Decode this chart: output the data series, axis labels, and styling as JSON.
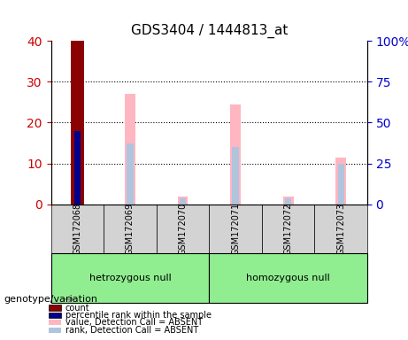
{
  "title": "GDS3404 / 1444813_at",
  "samples": [
    "GSM172068",
    "GSM172069",
    "GSM172070",
    "GSM172071",
    "GSM172072",
    "GSM172073"
  ],
  "groups": [
    {
      "label": "hetrozygous null",
      "samples": [
        "GSM172068",
        "GSM172069",
        "GSM172070"
      ],
      "color": "#90EE90"
    },
    {
      "label": "homozygous null",
      "samples": [
        "GSM172071",
        "GSM172072",
        "GSM172073"
      ],
      "color": "#90EE90"
    }
  ],
  "ylim_left": [
    0,
    40
  ],
  "ylim_right": [
    0,
    100
  ],
  "yticks_left": [
    0,
    10,
    20,
    30,
    40
  ],
  "yticks_right": [
    0,
    25,
    50,
    75,
    100
  ],
  "ytick_labels_right": [
    "0",
    "25",
    "50",
    "75",
    "100%"
  ],
  "bars": [
    {
      "sample": "GSM172068",
      "count_value": 40,
      "count_color": "#8B0000",
      "rank_value": 18,
      "rank_color": "#00008B",
      "absent_value": null,
      "absent_rank": null
    },
    {
      "sample": "GSM172069",
      "count_value": null,
      "count_color": null,
      "rank_value": null,
      "rank_color": null,
      "absent_value": 27,
      "absent_value_color": "#FFB6C1",
      "absent_rank": 15,
      "absent_rank_color": "#B0C4DE"
    },
    {
      "sample": "GSM172070",
      "count_value": null,
      "count_color": null,
      "rank_value": null,
      "rank_color": null,
      "absent_value": 2,
      "absent_value_color": "#FFB6C1",
      "absent_rank": 1.5,
      "absent_rank_color": "#B0C4DE"
    },
    {
      "sample": "GSM172071",
      "count_value": null,
      "count_color": null,
      "rank_value": null,
      "rank_color": null,
      "absent_value": 24.5,
      "absent_value_color": "#FFB6C1",
      "absent_rank": 14,
      "absent_rank_color": "#B0C4DE"
    },
    {
      "sample": "GSM172072",
      "count_value": null,
      "count_color": null,
      "rank_value": null,
      "rank_color": null,
      "absent_value": 2,
      "absent_value_color": "#FFB6C1",
      "absent_rank": 1.5,
      "absent_rank_color": "#B0C4DE"
    },
    {
      "sample": "GSM172073",
      "count_value": null,
      "count_color": null,
      "rank_value": null,
      "rank_color": null,
      "absent_value": 11.5,
      "absent_value_color": "#FFB6C1",
      "absent_rank": 10,
      "absent_rank_color": "#B0C4DE"
    }
  ],
  "legend_items": [
    {
      "label": "count",
      "color": "#8B0000"
    },
    {
      "label": "percentile rank within the sample",
      "color": "#00008B"
    },
    {
      "label": "value, Detection Call = ABSENT",
      "color": "#FFB6C1"
    },
    {
      "label": "rank, Detection Call = ABSENT",
      "color": "#B0C4DE"
    }
  ],
  "bar_width": 0.4,
  "background_color": "#ffffff",
  "plot_bg_color": "#ffffff",
  "grid_color": "#000000",
  "title_fontsize": 11,
  "axis_label_color_left": "#CC0000",
  "axis_label_color_right": "#0000CC"
}
